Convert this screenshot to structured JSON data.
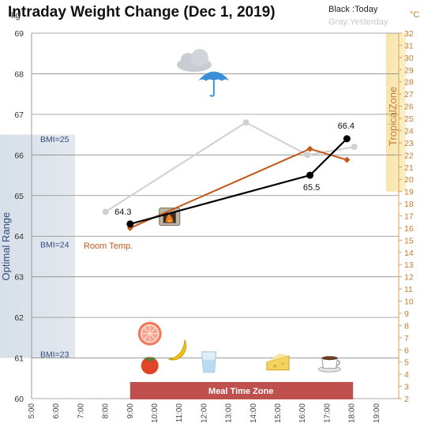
{
  "chart_data": {
    "type": "line",
    "title": "Intraday Weight Change (Dec 1, 2019)",
    "legend": {
      "today": "Black :Today",
      "yesterday": "Gray:Yesterday",
      "placement": "top-right"
    },
    "y_unit": "kg",
    "y2_unit": "°C",
    "ylim": [
      60,
      69
    ],
    "y_ticks": [
      "60",
      "61",
      "62",
      "63",
      "64",
      "65",
      "66",
      "67",
      "68",
      "69"
    ],
    "y2lim": [
      2,
      32
    ],
    "y2_ticks": [
      "2",
      "3",
      "4",
      "5",
      "6",
      "7",
      "8",
      "9",
      "10",
      "11",
      "12",
      "13",
      "14",
      "15",
      "16",
      "17",
      "18",
      "19",
      "20",
      "21",
      "22",
      "23",
      "24",
      "25",
      "26",
      "27",
      "28",
      "29",
      "30",
      "31",
      "32"
    ],
    "x_ticks": [
      "5:00",
      "6:00",
      "7:00",
      "8:00",
      "9:00",
      "10:00",
      "11:00",
      "12:00",
      "13:00",
      "14:00",
      "15:00",
      "16:00",
      "17:00",
      "18:00",
      "19:00"
    ],
    "xlim": [
      5,
      19.5
    ],
    "grid": true,
    "series": [
      {
        "key": "today",
        "axis": "left",
        "color": "#000000",
        "marker": "circle-large",
        "x": [
          9.0,
          16.3,
          17.8
        ],
        "y": [
          64.3,
          65.5,
          66.4
        ],
        "labels": [
          "64.3",
          "65.5",
          "66.4"
        ]
      },
      {
        "key": "yesterday",
        "axis": "left",
        "color": "#d0d0d0",
        "marker": "circle",
        "x": [
          8.0,
          13.7,
          16.2,
          18.1
        ],
        "y": [
          64.6,
          66.8,
          66.0,
          66.2
        ]
      },
      {
        "key": "room_temp",
        "axis": "right",
        "color": "#c45a1a",
        "marker": "diamond",
        "x": [
          9.0,
          16.3,
          17.8
        ],
        "y": [
          16.0,
          22.5,
          21.6
        ]
      }
    ],
    "annotations": {
      "optimal_range_label": "Optimal Range",
      "optimal_range_y": [
        61.0,
        66.5
      ],
      "bmi_labels": [
        {
          "text": "BMI=25",
          "y": 66.4
        },
        {
          "text": "BMI=24",
          "y": 63.8
        },
        {
          "text": "BMI=23",
          "y": 61.1
        }
      ],
      "tropical_zone_label": "TropicalZone",
      "tropical_zone_y2": [
        19,
        32
      ],
      "room_temp_label": "Room Temp.",
      "meal_zone_label": "Meal Time Zone",
      "meal_zone_x": [
        9.0,
        18.0
      ]
    },
    "icons": [
      {
        "name": "cloud-icon",
        "x": 11.6,
        "y": 68.3
      },
      {
        "name": "umbrella-icon",
        "x": 12.4,
        "y": 67.9
      },
      {
        "name": "heater-icon",
        "x": 10.6,
        "y": 64.5
      },
      {
        "name": "grapefruit-icon",
        "x": 9.8,
        "y": 61.6
      },
      {
        "name": "persimmon-icon",
        "x": 9.8,
        "y": 60.85
      },
      {
        "name": "banana-icon",
        "x": 10.9,
        "y": 61.2
      },
      {
        "name": "water-glass-icon",
        "x": 12.2,
        "y": 60.9
      },
      {
        "name": "cheese-icon",
        "x": 15.0,
        "y": 60.9
      },
      {
        "name": "coffee-cup-icon",
        "x": 17.1,
        "y": 60.9
      }
    ]
  }
}
